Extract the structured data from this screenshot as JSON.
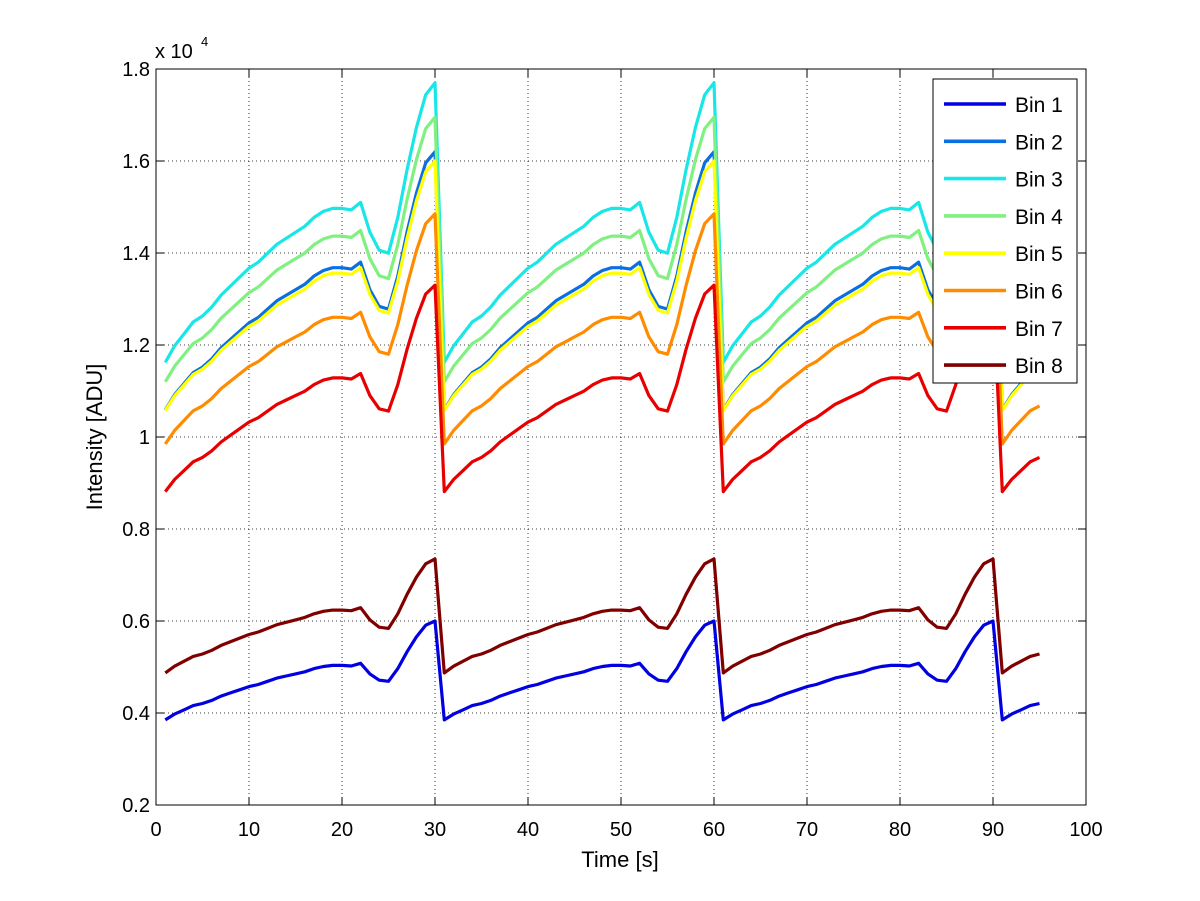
{
  "chart_data": {
    "type": "line",
    "title": "",
    "xlabel": "Time [s]",
    "ylabel": "Intensity [ADU]",
    "y_multiplier_label": "x 10",
    "y_multiplier_exponent": "4",
    "xlim": [
      0,
      100
    ],
    "ylim": [
      0.2,
      1.8
    ],
    "x_ticks": [
      0,
      10,
      20,
      30,
      40,
      50,
      60,
      70,
      80,
      90,
      100
    ],
    "y_ticks": [
      0.2,
      0.4,
      0.6,
      0.8,
      1,
      1.2,
      1.4,
      1.6,
      1.8
    ],
    "x_tick_labels": [
      "0",
      "10",
      "20",
      "30",
      "40",
      "50",
      "60",
      "70",
      "80",
      "90",
      "100"
    ],
    "y_tick_labels": [
      "0.2",
      "0.4",
      "0.6",
      "0.8",
      "1",
      "1.2",
      "1.4",
      "1.6",
      "1.8"
    ],
    "grid": true,
    "legend_position": "top-right",
    "x_start": 1,
    "x_end": 95,
    "cycle_length": 30,
    "profile_points": [
      [
        0,
        0
      ],
      [
        1,
        0.065
      ],
      [
        2,
        0.12
      ],
      [
        3,
        0.16
      ],
      [
        4,
        0.2
      ],
      [
        5,
        0.22
      ],
      [
        6,
        0.25
      ],
      [
        7,
        0.29
      ],
      [
        8,
        0.32
      ],
      [
        9,
        0.35
      ],
      [
        10,
        0.38
      ],
      [
        11,
        0.4
      ],
      [
        12,
        0.43
      ],
      [
        13,
        0.46
      ],
      [
        14,
        0.48
      ],
      [
        15,
        0.5
      ],
      [
        16,
        0.52
      ],
      [
        17,
        0.55
      ],
      [
        18,
        0.57
      ],
      [
        19,
        0.58
      ],
      [
        20,
        0.58
      ],
      [
        21,
        0.575
      ],
      [
        22,
        0.6
      ],
      [
        23,
        0.5
      ],
      [
        24,
        0.44
      ],
      [
        25,
        0.43
      ],
      [
        26,
        0.55
      ],
      [
        27,
        0.71
      ],
      [
        28,
        0.85
      ],
      [
        29,
        0.96
      ],
      [
        30,
        1.0
      ]
    ],
    "series": [
      {
        "name": "Bin 1",
        "color": "#0000e0",
        "start": 0.37,
        "end": 0.6
      },
      {
        "name": "Bin 2",
        "color": "#0a6fe0",
        "start": 1.02,
        "end": 1.62
      },
      {
        "name": "Bin 3",
        "color": "#19e6e6",
        "start": 1.12,
        "end": 1.77
      },
      {
        "name": "Bin 4",
        "color": "#80f080",
        "start": 1.08,
        "end": 1.695
      },
      {
        "name": "Bin 5",
        "color": "#ffff00",
        "start": 1.02,
        "end": 1.6
      },
      {
        "name": "Bin 6",
        "color": "#ff8c00",
        "start": 0.95,
        "end": 1.485
      },
      {
        "name": "Bin 7",
        "color": "#e80000",
        "start": 0.85,
        "end": 1.33
      },
      {
        "name": "Bin 8",
        "color": "#800000",
        "start": 0.47,
        "end": 0.735
      }
    ]
  }
}
